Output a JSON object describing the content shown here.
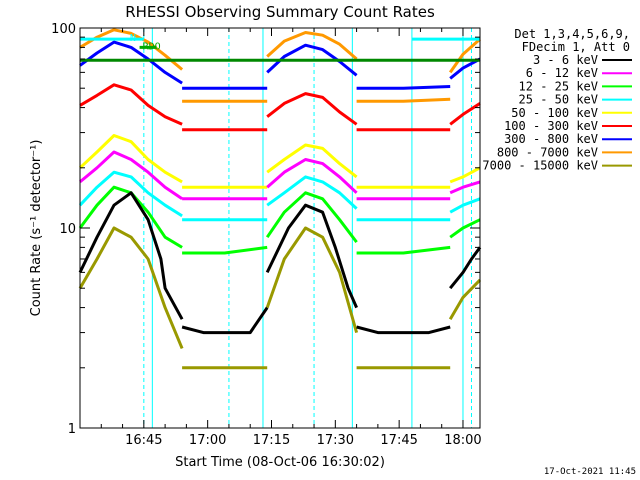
{
  "chart_data": {
    "type": "line",
    "title": "RHESSI Observing Summary Count Rates",
    "xlabel": "Start Time (08-Oct-06 16:30:02)",
    "ylabel": "Count Rate (s⁻¹ detector⁻¹)",
    "yscale": "log",
    "ylim": [
      1,
      100
    ],
    "xlim_minutes": [
      0,
      94
    ],
    "x_ticks": [
      {
        "label": "16:45",
        "t": 15
      },
      {
        "label": "17:00",
        "t": 30
      },
      {
        "label": "17:15",
        "t": 45
      },
      {
        "label": "17:30",
        "t": 60
      },
      {
        "label": "17:45",
        "t": 75
      },
      {
        "label": "18:00",
        "t": 90
      }
    ],
    "y_ticks": [
      {
        "label": "1",
        "v": 1
      },
      {
        "label": "10",
        "v": 10
      },
      {
        "label": "100",
        "v": 100
      }
    ],
    "legend_header": [
      "Det 1,3,4,5,6,9,",
      "FDecim 1, Att 0"
    ],
    "legend_position": "right",
    "series": [
      {
        "name": "3 - 6 keV",
        "color": "#000000",
        "segments": [
          {
            "t": [
              0,
              4,
              8,
              12,
              16,
              19,
              20,
              24
            ],
            "v": [
              6,
              9,
              13,
              15,
              11,
              7,
              5,
              3.5
            ]
          },
          {
            "t": [
              24,
              29,
              34,
              40,
              44
            ],
            "v": [
              3.2,
              3,
              3,
              3,
              4
            ]
          },
          {
            "t": [
              44,
              49,
              53,
              57,
              60,
              63,
              65
            ],
            "v": [
              6,
              10,
              13,
              12,
              8,
              5,
              4
            ]
          },
          {
            "t": [
              65,
              70,
              76,
              82,
              87
            ],
            "v": [
              3.2,
              3,
              3,
              3,
              3.2
            ]
          },
          {
            "t": [
              87,
              90,
              92,
              94
            ],
            "v": [
              5,
              6,
              7,
              8
            ]
          }
        ]
      },
      {
        "name": "6 - 12 keV",
        "color": "#ff00ff",
        "segments": [
          {
            "t": [
              0,
              4,
              8,
              12,
              16,
              20,
              24
            ],
            "v": [
              17,
              20,
              24,
              22,
              19,
              16,
              14
            ]
          },
          {
            "t": [
              24,
              34,
              44
            ],
            "v": [
              14,
              14,
              14
            ]
          },
          {
            "t": [
              44,
              48,
              53,
              57,
              61,
              65
            ],
            "v": [
              16,
              19,
              22,
              21,
              18,
              15
            ]
          },
          {
            "t": [
              65,
              76,
              87
            ],
            "v": [
              14,
              14,
              14
            ]
          },
          {
            "t": [
              87,
              90,
              94
            ],
            "v": [
              15,
              16,
              17
            ]
          }
        ]
      },
      {
        "name": "12 - 25 keV",
        "color": "#00ff00",
        "segments": [
          {
            "t": [
              0,
              4,
              8,
              12,
              16,
              20,
              24
            ],
            "v": [
              10,
              13,
              16,
              15,
              12,
              9,
              8
            ]
          },
          {
            "t": [
              24,
              34,
              44
            ],
            "v": [
              7.5,
              7.5,
              8
            ]
          },
          {
            "t": [
              44,
              48,
              53,
              57,
              61,
              65
            ],
            "v": [
              9,
              12,
              15,
              14,
              11,
              8.5
            ]
          },
          {
            "t": [
              65,
              76,
              87
            ],
            "v": [
              7.5,
              7.5,
              8
            ]
          },
          {
            "t": [
              87,
              90,
              94
            ],
            "v": [
              9,
              10,
              11
            ]
          }
        ]
      },
      {
        "name": "25 - 50 keV",
        "color": "#00ffff",
        "segments": [
          {
            "t": [
              0,
              4,
              8,
              12,
              16,
              20,
              24
            ],
            "v": [
              13,
              16,
              19,
              18,
              15,
              13,
              11.5
            ]
          },
          {
            "t": [
              24,
              34,
              44
            ],
            "v": [
              11,
              11,
              11
            ]
          },
          {
            "t": [
              44,
              48,
              53,
              57,
              61,
              65
            ],
            "v": [
              13,
              15,
              18,
              17,
              15,
              12.5
            ]
          },
          {
            "t": [
              65,
              76,
              87
            ],
            "v": [
              11,
              11,
              11
            ]
          },
          {
            "t": [
              87,
              90,
              94
            ],
            "v": [
              12,
              13,
              14
            ]
          }
        ]
      },
      {
        "name": "50 - 100 keV",
        "color": "#ffff00",
        "segments": [
          {
            "t": [
              0,
              4,
              8,
              12,
              16,
              20,
              24
            ],
            "v": [
              20,
              24,
              29,
              27,
              22,
              19,
              17
            ]
          },
          {
            "t": [
              24,
              34,
              44
            ],
            "v": [
              16,
              16,
              16
            ]
          },
          {
            "t": [
              44,
              48,
              53,
              57,
              61,
              65
            ],
            "v": [
              19,
              22,
              26,
              25,
              21,
              18
            ]
          },
          {
            "t": [
              65,
              76,
              87
            ],
            "v": [
              16,
              16,
              16
            ]
          },
          {
            "t": [
              87,
              90,
              94
            ],
            "v": [
              17,
              18,
              20
            ]
          }
        ]
      },
      {
        "name": "100 - 300 keV",
        "color": "#ff0000",
        "segments": [
          {
            "t": [
              0,
              4,
              8,
              12,
              16,
              20,
              24
            ],
            "v": [
              41,
              46,
              52,
              49,
              41,
              36,
              33
            ]
          },
          {
            "t": [
              24,
              34,
              44
            ],
            "v": [
              31,
              31,
              31
            ]
          },
          {
            "t": [
              44,
              48,
              53,
              57,
              61,
              65
            ],
            "v": [
              36,
              42,
              47,
              45,
              38,
              33
            ]
          },
          {
            "t": [
              65,
              76,
              87
            ],
            "v": [
              31,
              31,
              31
            ]
          },
          {
            "t": [
              87,
              90,
              94
            ],
            "v": [
              33,
              37,
              42
            ]
          }
        ]
      },
      {
        "name": "300 - 800 keV",
        "color": "#0000ff",
        "segments": [
          {
            "t": [
              0,
              4,
              8,
              12,
              16,
              20,
              24
            ],
            "v": [
              65,
              75,
              85,
              80,
              70,
              60,
              53
            ]
          },
          {
            "t": [
              24,
              34,
              44
            ],
            "v": [
              50,
              50,
              50
            ]
          },
          {
            "t": [
              44,
              48,
              53,
              57,
              61,
              65
            ],
            "v": [
              60,
              72,
              82,
              78,
              68,
              58
            ]
          },
          {
            "t": [
              65,
              76,
              87
            ],
            "v": [
              50,
              50,
              51
            ]
          },
          {
            "t": [
              87,
              90,
              94
            ],
            "v": [
              56,
              63,
              70
            ]
          }
        ]
      },
      {
        "name": "800 - 7000 keV",
        "color": "#ff9900",
        "segments": [
          {
            "t": [
              0,
              4,
              8,
              12,
              16,
              20,
              24
            ],
            "v": [
              80,
              90,
              98,
              94,
              85,
              73,
              62
            ]
          },
          {
            "t": [
              24,
              34,
              44
            ],
            "v": [
              43,
              43,
              43
            ]
          },
          {
            "t": [
              44,
              48,
              53,
              57,
              61,
              65
            ],
            "v": [
              72,
              86,
              95,
              92,
              83,
              70
            ]
          },
          {
            "t": [
              65,
              76,
              87
            ],
            "v": [
              43,
              43,
              44
            ]
          },
          {
            "t": [
              87,
              90,
              94
            ],
            "v": [
              60,
              74,
              88
            ]
          }
        ]
      },
      {
        "name": "7000 - 15000 keV",
        "color": "#999900",
        "segments": [
          {
            "t": [
              0,
              4,
              8,
              12,
              16,
              20,
              24
            ],
            "v": [
              5,
              7,
              10,
              9,
              7,
              4,
              2.5
            ]
          },
          {
            "t": [
              24,
              34,
              44
            ],
            "v": [
              2,
              2,
              2
            ]
          },
          {
            "t": [
              44,
              48,
              53,
              57,
              61,
              65
            ],
            "v": [
              4,
              7,
              10,
              9,
              6,
              3
            ]
          },
          {
            "t": [
              65,
              76,
              87
            ],
            "v": [
              2,
              2,
              2
            ]
          },
          {
            "t": [
              87,
              90,
              94
            ],
            "v": [
              3.5,
              4.5,
              5.5
            ]
          }
        ]
      }
    ],
    "flag_bars": [
      {
        "label": "N",
        "color": "#00ffff",
        "t0": 0,
        "t1": 15,
        "v": 88
      },
      {
        "label": "RDO",
        "color": "#00aa00",
        "t0": 14,
        "t1": 18,
        "v": 80
      },
      {
        "label": "",
        "color": "#00ffff",
        "t0": 78,
        "t1": 94,
        "v": 88
      },
      {
        "label": "",
        "color": "#008800",
        "t0": 0,
        "t1": 94,
        "v": 69
      }
    ],
    "vlines_solid": [
      17,
      43,
      64,
      78,
      90
    ],
    "vlines_dashed": [
      15,
      35,
      55,
      92
    ],
    "timestamp": "17-Oct-2021 11:45"
  }
}
